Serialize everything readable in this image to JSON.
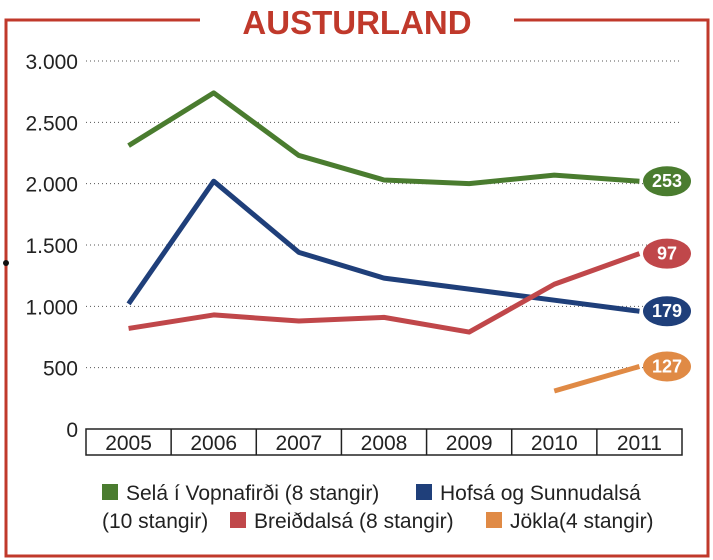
{
  "chart_data": {
    "type": "line",
    "title": "AUSTURLAND",
    "xlabel": "",
    "ylabel": "",
    "ylim": [
      0,
      3000
    ],
    "yticks": [
      0,
      500,
      1000,
      1500,
      2000,
      2500,
      3000
    ],
    "ytick_labels": [
      "0",
      "500",
      "1.000",
      "1.500",
      "2.000",
      "2.500",
      "3.000"
    ],
    "x": [
      "2005",
      "2006",
      "2007",
      "2008",
      "2009",
      "2010",
      "2011"
    ],
    "grid": "horizontal dotted",
    "legend_position": "bottom",
    "series": [
      {
        "name": "Selá í Vopnafirði (8 stangir)",
        "color": "#4a7c2f",
        "values": [
          2310,
          2740,
          2230,
          2030,
          2000,
          2070,
          2020
        ],
        "end_label": "253"
      },
      {
        "name": "Hofsá og Sunnudalsá (10 stangir)",
        "color": "#1f3f7a",
        "values": [
          1020,
          2020,
          1440,
          1230,
          1140,
          1050,
          960
        ],
        "end_label": "179"
      },
      {
        "name": "Breiðdalsá (8 stangir)",
        "color": "#c0474a",
        "values": [
          820,
          930,
          880,
          910,
          790,
          1180,
          1430
        ],
        "end_label": "97"
      },
      {
        "name": "Jökla(4 stangir)",
        "color": "#e08a45",
        "values": [
          null,
          null,
          null,
          null,
          null,
          310,
          510
        ],
        "end_label": "127"
      }
    ]
  },
  "legend": {
    "line1": [
      "Selá í Vopnafirði (8 stangir)",
      "Hofsá og Sunnudalsá"
    ],
    "line2": [
      "(10 stangir)",
      "Breiðdalsá (8 stangir)",
      "Jökla(4 stangir)"
    ]
  },
  "colors": {
    "frame": "#c0392b",
    "green": "#4a7c2f",
    "blue": "#1f3f7a",
    "red": "#c0474a",
    "orange": "#e08a45"
  }
}
